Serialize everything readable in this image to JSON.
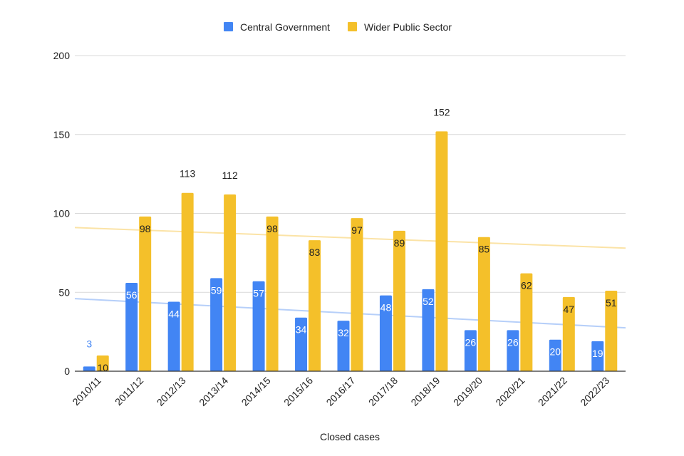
{
  "chart_data": {
    "type": "bar",
    "title": "",
    "xlabel": "Closed cases",
    "ylabel": "",
    "ylim": [
      0,
      200
    ],
    "yticks": [
      0,
      50,
      100,
      150,
      200
    ],
    "legend_position": "top-center",
    "grid": true,
    "categories": [
      "2010/11",
      "2011/12",
      "2012/13",
      "2013/14",
      "2014/15",
      "2015/16",
      "2016/17",
      "2017/18",
      "2018/19",
      "2019/20",
      "2020/21",
      "2021/22",
      "2022/23"
    ],
    "series": [
      {
        "name": "Central Government",
        "color": "#4285f4",
        "values": [
          3,
          56,
          44,
          59,
          57,
          34,
          32,
          48,
          52,
          26,
          26,
          20,
          19
        ],
        "trendline": {
          "start": 46,
          "end": 27.5,
          "color": "#b6cff9"
        }
      },
      {
        "name": "Wider Public Sector",
        "color": "#f4c02a",
        "values": [
          10,
          98,
          113,
          112,
          98,
          83,
          97,
          89,
          152,
          85,
          62,
          47,
          51
        ],
        "trendline": {
          "start": 91,
          "end": 78,
          "color": "#fbe3a6"
        }
      }
    ]
  }
}
